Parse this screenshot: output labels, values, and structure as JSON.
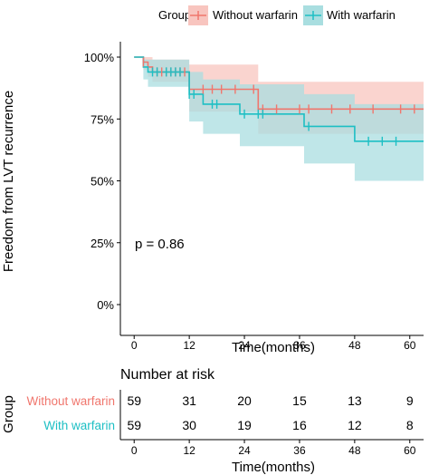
{
  "legend": {
    "title": "Group",
    "items": [
      {
        "label": "Without warfarin",
        "color": "#F0766D"
      },
      {
        "label": "With warfarin",
        "color": "#1DBFC4"
      }
    ]
  },
  "main_plot": {
    "ylabel": "Freedom from LVT recurrence",
    "xlabel": "Time(months)",
    "annotation": "p = 0.86"
  },
  "risk_table": {
    "title": "Number at risk",
    "ylabel": "Group",
    "xlabel": "Time(months)"
  },
  "chart_data": [
    {
      "type": "line",
      "subtype": "kaplan-meier step curve with confidence bands",
      "xlabel": "Time(months)",
      "ylabel": "Freedom from LVT recurrence",
      "xlim": [
        -3,
        63
      ],
      "ylim": [
        0,
        100
      ],
      "x_ticks": [
        0,
        12,
        24,
        36,
        48,
        60
      ],
      "y_ticks": [
        0,
        25,
        50,
        75,
        100
      ],
      "y_tick_labels": [
        "0%",
        "25%",
        "50%",
        "75%",
        "100%"
      ],
      "grid": false,
      "legend_position": "top",
      "annotation": "p = 0.86",
      "series": [
        {
          "name": "Without warfarin",
          "color": "#F0766D",
          "band_color": "#F8C5BF",
          "steps": [
            [
              0,
              100
            ],
            [
              2,
              98
            ],
            [
              3,
              96
            ],
            [
              4,
              94
            ],
            [
              12,
              87
            ],
            [
              27,
              79
            ],
            [
              63,
              79
            ]
          ],
          "lower": [
            [
              0,
              100
            ],
            [
              2,
              95
            ],
            [
              3,
              92
            ],
            [
              4,
              90
            ],
            [
              12,
              78
            ],
            [
              27,
              69
            ],
            [
              63,
              69
            ]
          ],
          "upper": [
            [
              0,
              100
            ],
            [
              3,
              100
            ],
            [
              4,
              99
            ],
            [
              12,
              97
            ],
            [
              27,
              90
            ],
            [
              63,
              90
            ]
          ],
          "censor_x": [
            2,
            5,
            6,
            7,
            8,
            9,
            10,
            11,
            15,
            17,
            19,
            22,
            26,
            28,
            31,
            36,
            38,
            43,
            47,
            52,
            58,
            61
          ]
        },
        {
          "name": "With warfarin",
          "color": "#1DBFC4",
          "band_color": "#A9DEE0",
          "steps": [
            [
              0,
              100
            ],
            [
              2,
              96
            ],
            [
              3,
              94
            ],
            [
              12,
              85
            ],
            [
              15,
              81
            ],
            [
              23,
              77
            ],
            [
              37,
              72
            ],
            [
              48,
              66
            ],
            [
              63,
              66
            ]
          ],
          "lower": [
            [
              0,
              100
            ],
            [
              2,
              91
            ],
            [
              3,
              88
            ],
            [
              12,
              74
            ],
            [
              15,
              69
            ],
            [
              23,
              64
            ],
            [
              37,
              57
            ],
            [
              48,
              50
            ],
            [
              63,
              50
            ]
          ],
          "upper": [
            [
              0,
              100
            ],
            [
              2,
              99
            ],
            [
              3,
              99
            ],
            [
              12,
              94
            ],
            [
              15,
              91
            ],
            [
              23,
              89
            ],
            [
              37,
              85
            ],
            [
              48,
              81
            ],
            [
              63,
              81
            ]
          ],
          "censor_x": [
            4,
            5,
            7,
            8,
            9,
            10,
            12,
            13,
            17,
            18,
            24,
            27,
            28,
            38,
            51,
            54,
            57
          ]
        }
      ]
    },
    {
      "type": "table",
      "title": "Number at risk",
      "xlabel": "Time(months)",
      "ylabel": "Group",
      "columns": [
        0,
        12,
        24,
        36,
        48,
        60
      ],
      "rows": [
        {
          "name": "Without warfarin",
          "color": "#F0766D",
          "values": [
            "59",
            "31",
            "20",
            "15",
            "13",
            "9"
          ]
        },
        {
          "name": "With warfarin",
          "color": "#1DBFC4",
          "values": [
            "59",
            "30",
            "19",
            "16",
            "12",
            "8"
          ]
        }
      ]
    }
  ]
}
